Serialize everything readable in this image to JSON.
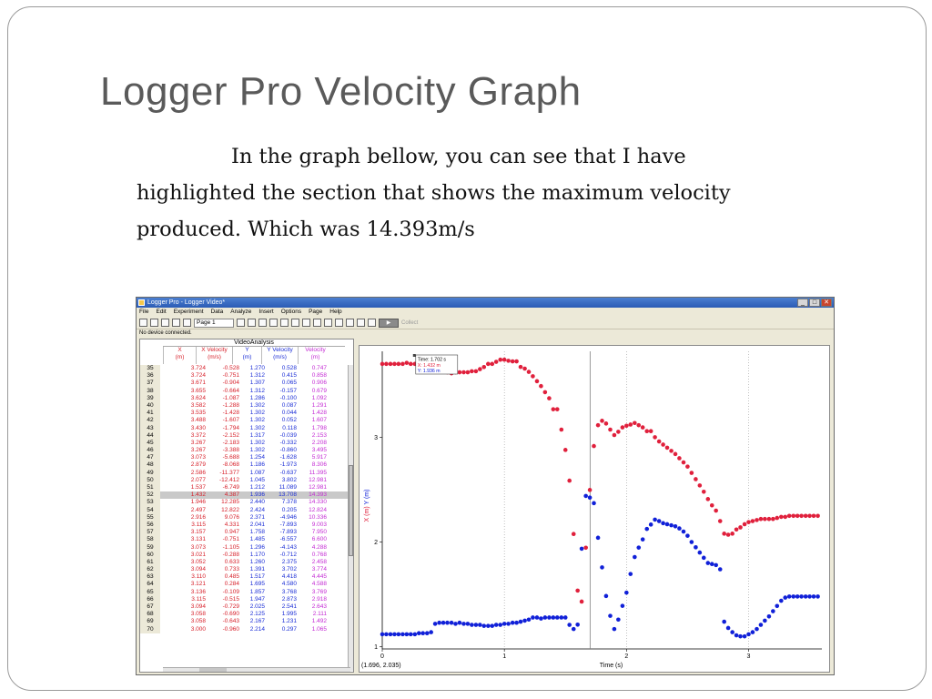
{
  "slide": {
    "title": "Logger Pro Velocity Graph",
    "body_line1": "In the graph bellow, you can see that I have",
    "body_line2": "highlighted the section that shows the maximum velocity",
    "body_line3": "produced. Which was 14.393m/s"
  },
  "window": {
    "title": "Logger Pro - Logger Video*",
    "min_label": "_",
    "max_label": "□",
    "close_label": "✕",
    "menu": [
      "File",
      "Edit",
      "Experiment",
      "Data",
      "Analyze",
      "Insert",
      "Options",
      "Page",
      "Help"
    ],
    "page_select": "Page 1",
    "collect_label": "Collect",
    "status": "No device connected."
  },
  "table": {
    "title": "VideoAnalysis",
    "headers": [
      {
        "name": "X",
        "unit": "(m)"
      },
      {
        "name": "X Velocity",
        "unit": "(m/s)"
      },
      {
        "name": "Y",
        "unit": "(m)"
      },
      {
        "name": "Y Velocity",
        "unit": "(m/s)"
      },
      {
        "name": "Velocity",
        "unit": "(m)"
      }
    ],
    "selected_row": "52",
    "rows": [
      [
        "35",
        "3.724",
        "-0.528",
        "1.270",
        "0.528",
        "0.747"
      ],
      [
        "36",
        "3.724",
        "-0.751",
        "1.312",
        "0.415",
        "0.858"
      ],
      [
        "37",
        "3.671",
        "-0.904",
        "1.307",
        "0.065",
        "0.906"
      ],
      [
        "38",
        "3.655",
        "-0.664",
        "1.312",
        "-0.157",
        "0.679"
      ],
      [
        "39",
        "3.624",
        "-1.087",
        "1.286",
        "-0.100",
        "1.092"
      ],
      [
        "40",
        "3.582",
        "-1.288",
        "1.302",
        "0.087",
        "1.291"
      ],
      [
        "41",
        "3.535",
        "-1.428",
        "1.302",
        "0.044",
        "1.428"
      ],
      [
        "42",
        "3.488",
        "-1.607",
        "1.302",
        "0.052",
        "1.607"
      ],
      [
        "43",
        "3.430",
        "-1.794",
        "1.302",
        "0.118",
        "1.798"
      ],
      [
        "44",
        "3.372",
        "-2.152",
        "1.317",
        "-0.039",
        "2.153"
      ],
      [
        "45",
        "3.267",
        "-2.183",
        "1.302",
        "-0.332",
        "2.208"
      ],
      [
        "46",
        "3.267",
        "-3.388",
        "1.302",
        "-0.860",
        "3.495"
      ],
      [
        "47",
        "3.073",
        "-5.688",
        "1.254",
        "-1.628",
        "5.917"
      ],
      [
        "48",
        "2.879",
        "-8.068",
        "1.186",
        "-1.973",
        "8.306"
      ],
      [
        "49",
        "2.586",
        "-11.377",
        "1.087",
        "-0.637",
        "11.395"
      ],
      [
        "50",
        "2.077",
        "-12.412",
        "1.045",
        "3.802",
        "12.981"
      ],
      [
        "51",
        "1.537",
        "-6.749",
        "1.212",
        "11.089",
        "12.981"
      ],
      [
        "52",
        "1.432",
        "4.387",
        "1.936",
        "13.708",
        "14.393"
      ],
      [
        "53",
        "1.946",
        "12.285",
        "2.440",
        "7.378",
        "14.330"
      ],
      [
        "54",
        "2.497",
        "12.822",
        "2.424",
        "0.205",
        "12.824"
      ],
      [
        "55",
        "2.916",
        "9.076",
        "2.371",
        "-4.946",
        "10.336"
      ],
      [
        "56",
        "3.115",
        "4.331",
        "2.041",
        "-7.893",
        "9.003"
      ],
      [
        "57",
        "3.157",
        "0.947",
        "1.758",
        "-7.893",
        "7.950"
      ],
      [
        "58",
        "3.131",
        "-0.751",
        "1.485",
        "-6.557",
        "6.600"
      ],
      [
        "59",
        "3.073",
        "-1.105",
        "1.296",
        "-4.143",
        "4.288"
      ],
      [
        "60",
        "3.021",
        "-0.288",
        "1.170",
        "-0.712",
        "0.768"
      ],
      [
        "61",
        "3.052",
        "0.633",
        "1.260",
        "2.375",
        "2.458"
      ],
      [
        "62",
        "3.094",
        "0.733",
        "1.391",
        "3.702",
        "3.774"
      ],
      [
        "63",
        "3.110",
        "0.485",
        "1.517",
        "4.418",
        "4.445"
      ],
      [
        "64",
        "3.121",
        "0.284",
        "1.695",
        "4.580",
        "4.588"
      ],
      [
        "65",
        "3.136",
        "-0.109",
        "1.857",
        "3.768",
        "3.769"
      ],
      [
        "66",
        "3.115",
        "-0.515",
        "1.947",
        "2.873",
        "2.918"
      ],
      [
        "67",
        "3.094",
        "-0.729",
        "2.025",
        "2.541",
        "2.643"
      ],
      [
        "68",
        "3.058",
        "-0.690",
        "2.125",
        "1.995",
        "2.111"
      ],
      [
        "69",
        "3.058",
        "-0.643",
        "2.167",
        "1.231",
        "1.492"
      ],
      [
        "70",
        "3.000",
        "-0.960",
        "2.214",
        "0.297",
        "1.065"
      ]
    ]
  },
  "graph": {
    "tooltip": [
      "Time: 1.702 s",
      "X: 1.432 m",
      "Y: 1.936 m"
    ],
    "cursor_readout": "(1.696, 2.035)",
    "colors": {
      "x": "#e0203c",
      "y": "#1020d8",
      "cursor": "#808080"
    }
  },
  "chart_data": {
    "type": "scatter",
    "xlabel": "Time (s)",
    "ylabel_parts": [
      "X (m)",
      "Y (m)"
    ],
    "x_ticks": [
      "0",
      "1",
      "2",
      "3"
    ],
    "y_ticks": [
      "1",
      "2",
      "3"
    ],
    "xlim": [
      0,
      3.6
    ],
    "ylim": [
      0.98,
      3.82
    ],
    "cursor_time": 1.702,
    "series": [
      {
        "name": "X",
        "color": "#e0203c",
        "t": [
          0.0,
          0.033,
          0.067,
          0.1,
          0.133,
          0.167,
          0.2,
          0.233,
          0.267,
          0.3,
          0.333,
          0.367,
          0.4,
          0.433,
          0.467,
          0.5,
          0.533,
          0.567,
          0.6,
          0.633,
          0.667,
          0.7,
          0.733,
          0.767,
          0.8,
          0.833,
          0.867,
          0.9,
          0.933,
          0.967,
          1.0,
          1.033,
          1.067,
          1.1,
          1.133,
          1.167,
          1.2,
          1.233,
          1.267,
          1.3,
          1.333,
          1.367,
          1.4,
          1.433,
          1.467,
          1.5,
          1.533,
          1.567,
          1.6,
          1.633,
          1.667,
          1.7,
          1.733,
          1.767,
          1.8,
          1.833,
          1.867,
          1.9,
          1.933,
          1.967,
          2.0,
          2.033,
          2.067,
          2.1,
          2.133,
          2.167,
          2.2,
          2.233,
          2.267,
          2.3,
          2.333,
          2.367,
          2.4,
          2.433,
          2.467,
          2.5,
          2.533,
          2.567,
          2.6,
          2.633,
          2.667,
          2.7,
          2.733,
          2.767,
          2.8,
          2.833,
          2.867,
          2.9,
          2.933,
          2.967,
          3.0,
          3.033,
          3.067,
          3.1,
          3.133,
          3.167,
          3.2,
          3.233,
          3.267,
          3.3,
          3.333,
          3.367,
          3.4,
          3.433,
          3.467,
          3.5,
          3.533,
          3.567
        ],
        "values": [
          3.7,
          3.7,
          3.7,
          3.7,
          3.7,
          3.7,
          3.71,
          3.7,
          3.7,
          3.71,
          3.7,
          3.71,
          3.71,
          3.72,
          3.71,
          3.7,
          3.62,
          3.61,
          3.62,
          3.62,
          3.62,
          3.62,
          3.63,
          3.63,
          3.65,
          3.67,
          3.7,
          3.7,
          3.72,
          3.74,
          3.74,
          3.73,
          3.724,
          3.724,
          3.671,
          3.655,
          3.624,
          3.582,
          3.535,
          3.488,
          3.43,
          3.372,
          3.267,
          3.267,
          3.073,
          2.879,
          2.586,
          2.077,
          1.537,
          1.432,
          1.946,
          2.497,
          2.916,
          3.115,
          3.157,
          3.131,
          3.073,
          3.021,
          3.052,
          3.094,
          3.11,
          3.121,
          3.136,
          3.115,
          3.094,
          3.058,
          3.058,
          3.0,
          2.96,
          2.93,
          2.9,
          2.87,
          2.84,
          2.8,
          2.76,
          2.72,
          2.66,
          2.6,
          2.54,
          2.48,
          2.41,
          2.35,
          2.3,
          2.2,
          2.08,
          2.07,
          2.08,
          2.12,
          2.14,
          2.17,
          2.19,
          2.2,
          2.21,
          2.22,
          2.22,
          2.22,
          2.22,
          2.23,
          2.24,
          2.24,
          2.25,
          2.25,
          2.25,
          2.25,
          2.25,
          2.25,
          2.25,
          2.25
        ]
      },
      {
        "name": "Y",
        "color": "#1020d8",
        "t": [
          0.0,
          0.033,
          0.067,
          0.1,
          0.133,
          0.167,
          0.2,
          0.233,
          0.267,
          0.3,
          0.333,
          0.367,
          0.4,
          0.433,
          0.467,
          0.5,
          0.533,
          0.567,
          0.6,
          0.633,
          0.667,
          0.7,
          0.733,
          0.767,
          0.8,
          0.833,
          0.867,
          0.9,
          0.933,
          0.967,
          1.0,
          1.033,
          1.067,
          1.1,
          1.133,
          1.167,
          1.2,
          1.233,
          1.267,
          1.3,
          1.333,
          1.367,
          1.4,
          1.433,
          1.467,
          1.5,
          1.533,
          1.567,
          1.6,
          1.633,
          1.667,
          1.7,
          1.733,
          1.767,
          1.8,
          1.833,
          1.867,
          1.9,
          1.933,
          1.967,
          2.0,
          2.033,
          2.067,
          2.1,
          2.133,
          2.167,
          2.2,
          2.233,
          2.267,
          2.3,
          2.333,
          2.367,
          2.4,
          2.433,
          2.467,
          2.5,
          2.533,
          2.567,
          2.6,
          2.633,
          2.667,
          2.7,
          2.733,
          2.767,
          2.8,
          2.833,
          2.867,
          2.9,
          2.933,
          2.967,
          3.0,
          3.033,
          3.067,
          3.1,
          3.133,
          3.167,
          3.2,
          3.233,
          3.267,
          3.3,
          3.333,
          3.367,
          3.4,
          3.433,
          3.467,
          3.5,
          3.533,
          3.567
        ],
        "values": [
          1.12,
          1.12,
          1.12,
          1.12,
          1.12,
          1.12,
          1.12,
          1.12,
          1.12,
          1.13,
          1.13,
          1.13,
          1.14,
          1.22,
          1.23,
          1.23,
          1.23,
          1.23,
          1.22,
          1.23,
          1.22,
          1.22,
          1.21,
          1.21,
          1.21,
          1.2,
          1.2,
          1.2,
          1.21,
          1.21,
          1.22,
          1.22,
          1.23,
          1.23,
          1.24,
          1.25,
          1.26,
          1.28,
          1.28,
          1.27,
          1.28,
          1.28,
          1.28,
          1.28,
          1.28,
          1.28,
          1.21,
          1.17,
          1.212,
          1.936,
          2.44,
          2.424,
          2.371,
          2.041,
          1.758,
          1.485,
          1.296,
          1.17,
          1.26,
          1.391,
          1.517,
          1.695,
          1.857,
          1.947,
          2.025,
          2.125,
          2.167,
          2.214,
          2.2,
          2.18,
          2.17,
          2.16,
          2.15,
          2.13,
          2.1,
          2.06,
          2.0,
          1.95,
          1.9,
          1.85,
          1.8,
          1.79,
          1.78,
          1.74,
          1.24,
          1.18,
          1.14,
          1.11,
          1.1,
          1.1,
          1.12,
          1.14,
          1.17,
          1.21,
          1.25,
          1.29,
          1.34,
          1.39,
          1.44,
          1.47,
          1.48,
          1.48,
          1.48,
          1.48,
          1.48,
          1.48,
          1.48,
          1.48
        ]
      }
    ]
  }
}
